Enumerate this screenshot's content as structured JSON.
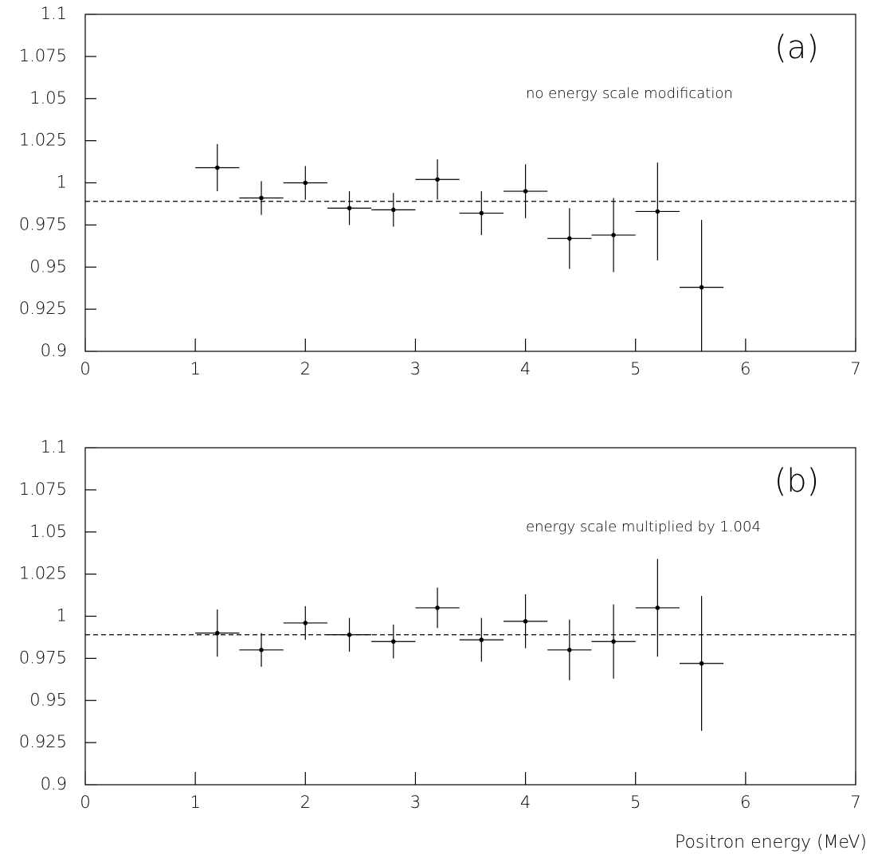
{
  "chart_data": [
    {
      "type": "errorbar",
      "annotation_label": "(a)",
      "annotation": "no energy scale modification",
      "x": [
        1.2,
        1.6,
        2.0,
        2.4,
        2.8,
        3.2,
        3.6,
        4.0,
        4.4,
        4.8,
        5.2,
        5.6
      ],
      "values": [
        1.009,
        0.991,
        1.0,
        0.985,
        0.984,
        1.002,
        0.982,
        0.995,
        0.967,
        0.969,
        0.983,
        0.938
      ],
      "errors": [
        0.014,
        0.01,
        0.01,
        0.01,
        0.01,
        0.012,
        0.013,
        0.016,
        0.018,
        0.022,
        0.029,
        0.04
      ],
      "xerr": [
        0.2,
        0.2,
        0.2,
        0.2,
        0.2,
        0.2,
        0.2,
        0.2,
        0.2,
        0.2,
        0.2,
        0.2
      ],
      "reference_line": 0.989,
      "color": "#000000",
      "xlim": [
        0,
        7
      ],
      "xticks": [
        0,
        1,
        2,
        3,
        4,
        5,
        6,
        7
      ],
      "ylim": [
        0.9,
        1.1
      ],
      "yticks": [
        0.9,
        0.925,
        0.95,
        0.975,
        1,
        1.025,
        1.05,
        1.075,
        1.1
      ]
    },
    {
      "type": "errorbar",
      "annotation_label": "(b)",
      "annotation": "energy scale multiplied by 1.004",
      "x": [
        1.2,
        1.6,
        2.0,
        2.4,
        2.8,
        3.2,
        3.6,
        4.0,
        4.4,
        4.8,
        5.2,
        5.6
      ],
      "values": [
        0.99,
        0.98,
        0.996,
        0.989,
        0.985,
        1.005,
        0.986,
        0.997,
        0.98,
        0.985,
        1.005,
        0.972
      ],
      "errors": [
        0.014,
        0.01,
        0.01,
        0.01,
        0.01,
        0.012,
        0.013,
        0.016,
        0.018,
        0.022,
        0.029,
        0.04
      ],
      "xerr": [
        0.2,
        0.2,
        0.2,
        0.2,
        0.2,
        0.2,
        0.2,
        0.2,
        0.2,
        0.2,
        0.2,
        0.2
      ],
      "reference_line": 0.989,
      "color": "#000000",
      "xlabel": "Positron energy (MeV)",
      "xlim": [
        0,
        7
      ],
      "xticks": [
        0,
        1,
        2,
        3,
        4,
        5,
        6,
        7
      ],
      "ylim": [
        0.9,
        1.1
      ],
      "yticks": [
        0.9,
        0.925,
        0.95,
        0.975,
        1,
        1.025,
        1.05,
        1.075,
        1.1
      ]
    }
  ]
}
